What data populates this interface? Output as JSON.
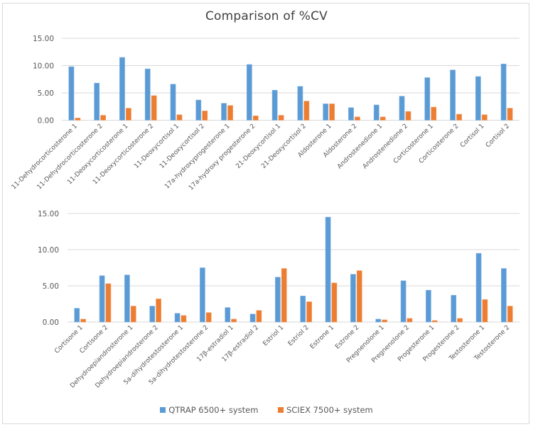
{
  "chart_data": [
    {
      "type": "bar",
      "title": "Comparison of %CV",
      "xlabel": "",
      "ylabel": "",
      "ylim": [
        0,
        15
      ],
      "yticks": [
        "0.00",
        "5.00",
        "10.00",
        "15.00"
      ],
      "grid": true,
      "legend": "bottom",
      "categories": [
        "11-Dehydrocorticosterone 1",
        "11-Dehydrocorticosterone 2",
        "11-Deoxycorticosterone 1",
        "11-Deoxycorticosterone 2",
        "11-Deoxycortisol 1",
        "11-Deoxycortisol 2",
        "17a-hydroxyprogesterone 1",
        "17a-hydroxy progesterone 2",
        "21-Deoxycortisol 1",
        "21-Deoxycortisol 2",
        "Aldosterone 1",
        "Aldosterone 2",
        "Androstenedione 1",
        "Androstenedione 2",
        "Corticosterone 1",
        "Corticosterone 2",
        "Cortisol 1",
        "Cortisol 2"
      ],
      "series": [
        {
          "name": "QTRAP 6500+ system",
          "color": "#5b9bd5",
          "values": [
            9.8,
            6.8,
            11.5,
            9.4,
            6.6,
            3.7,
            3.1,
            10.2,
            5.5,
            6.2,
            3.0,
            2.3,
            2.8,
            4.4,
            7.8,
            9.2,
            8.0,
            10.3
          ]
        },
        {
          "name": "SCIEX 7500+ system",
          "color": "#ed7d31",
          "values": [
            0.4,
            0.9,
            2.2,
            4.5,
            1.0,
            1.7,
            2.7,
            0.8,
            0.9,
            3.5,
            3.0,
            0.6,
            0.6,
            1.6,
            2.4,
            1.1,
            1.0,
            2.2
          ]
        }
      ]
    },
    {
      "type": "bar",
      "title": "",
      "xlabel": "",
      "ylabel": "",
      "ylim": [
        0,
        15
      ],
      "yticks": [
        "0.00",
        "5.00",
        "10.00",
        "15.00"
      ],
      "grid": true,
      "legend": "bottom",
      "categories": [
        "Cortisone 1",
        "Cortisone 2",
        "Dehydroepiandrosterone 1",
        "Dehydroepiandrosterone 2",
        "5a-dihydrotestosterone 1",
        "5a-dihydrotestosterone 2",
        "17β-estradiol 1",
        "17β-estradiol 2",
        "Estriol 1",
        "Estriol 2",
        "Estrone 1",
        "Estrone 2",
        "Pregnenolone 1",
        "Pregnenolone 2",
        "Progesterone 1",
        "Progesterone 2",
        "Testosterone 1",
        "Testosterone 2"
      ],
      "series": [
        {
          "name": "QTRAP 6500+ system",
          "color": "#5b9bd5",
          "values": [
            1.9,
            6.4,
            6.5,
            2.2,
            1.2,
            7.5,
            2.0,
            1.1,
            6.2,
            3.6,
            14.5,
            6.6,
            0.4,
            5.7,
            4.4,
            3.7,
            9.5,
            7.4
          ]
        },
        {
          "name": "SCIEX 7500+ system",
          "color": "#ed7d31",
          "values": [
            0.4,
            5.3,
            2.2,
            3.2,
            0.9,
            1.3,
            0.4,
            1.6,
            7.4,
            2.8,
            5.4,
            7.1,
            0.3,
            0.5,
            0.2,
            0.5,
            3.1,
            2.2
          ]
        }
      ]
    }
  ],
  "title": "Comparison of %CV",
  "legend": [
    {
      "label": "QTRAP 6500+ system",
      "color": "#5b9bd5"
    },
    {
      "label": "SCIEX 7500+ system",
      "color": "#ed7d31"
    }
  ]
}
